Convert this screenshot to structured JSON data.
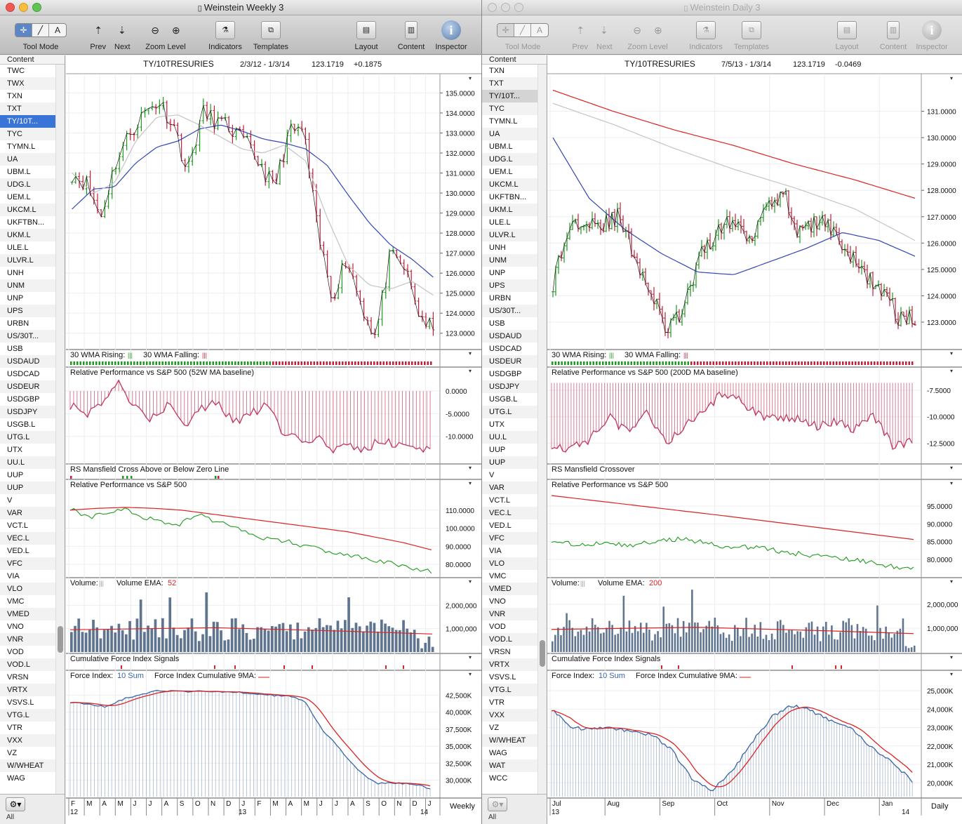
{
  "colors": {
    "up": "#1e9a1e",
    "down": "#c21e3a",
    "ma30": "#3246b4",
    "ma10": "#c4c4c4",
    "red": "#dd2222",
    "hist": "#c0365c",
    "vol": "#5f748f",
    "fi": "#7d94b8"
  },
  "left_window": {
    "title": "Weinstein Weekly 3",
    "toolbar": {
      "tool_mode": "Tool Mode",
      "prev": "Prev",
      "next": "Next",
      "zoom_level": "Zoom Level",
      "indicators": "Indicators",
      "templates": "Templates",
      "layout": "Layout",
      "content": "Content",
      "inspector": "Inspector"
    },
    "sidebar": {
      "header": "Content",
      "items": [
        "TWC",
        "TWX",
        "TXN",
        "TXT",
        "TY/10T...",
        "TYC",
        "TYMN.L",
        "UA",
        "UBM.L",
        "UDG.L",
        "UEM.L",
        "UKCM.L",
        "UKFTBN...",
        "UKM.L",
        "ULE.L",
        "ULVR.L",
        "UNH",
        "UNM",
        "UNP",
        "UPS",
        "URBN",
        "US/30T...",
        "USB",
        "USDAUD",
        "USDCAD",
        "USDEUR",
        "USDGBP",
        "USDJPY",
        "USGB.L",
        "UTG.L",
        "UTX",
        "UU.L",
        "UUP",
        "UUP",
        "V",
        "VAR",
        "VCT.L",
        "VEC.L",
        "VED.L",
        "VFC",
        "VIA",
        "VLO",
        "VMC",
        "VMED",
        "VNO",
        "VNR",
        "VOD",
        "VOD.L",
        "VRSN",
        "VRTX",
        "VSVS.L",
        "VTG.L",
        "VTR",
        "VXX",
        "VZ",
        "W/WHEAT",
        "WAG"
      ],
      "selected": 4,
      "footer": "All",
      "gear_icon": "gear-icon"
    },
    "chart": {
      "header": {
        "symbol": "TY/10TRESURIES",
        "range": "2/3/12 - 1/3/14",
        "last": "123.1719",
        "change": "+0.1875"
      },
      "price_ticks": [
        "135.0000",
        "134.0000",
        "133.0000",
        "132.0000",
        "131.0000",
        "130.0000",
        "129.0000",
        "128.0000",
        "127.0000",
        "126.0000",
        "125.0000",
        "124.0000",
        "123.0000"
      ],
      "wma_label": "30 WMA Rising:",
      "wma_falling_label": "30 WMA Falling:",
      "rp_ma_title": "Relative Performance vs S&P 500 (52W MA baseline)",
      "rp_ma_ticks": [
        "0.0000",
        "-5.0000",
        "-10.0000"
      ],
      "rs_title": "RS Mansfield Cross Above or Below Zero Line",
      "rp_title": "Relative Performance vs S&P 500",
      "rp_ticks": [
        "110.0000",
        "100.0000",
        "90.0000",
        "80.0000"
      ],
      "vol_label": "Volume:",
      "vol_ema_label": "Volume EMA:",
      "vol_ema_value": "52",
      "vol_ticks": [
        "2,000,000",
        "1,000,000"
      ],
      "cfi_title": "Cumulative Force Index Signals",
      "fi_label": "Force Index:",
      "fi_sum": "10 Sum",
      "fi_cum_label": "Force Index Cumulative 9MA:",
      "fi_ticks": [
        "42,500K",
        "40,000K",
        "37,500K",
        "35,000K",
        "32,500K",
        "30,000K"
      ],
      "x_months": [
        "F",
        "M",
        "A",
        "M",
        "J",
        "J",
        "A",
        "S",
        "O",
        "N",
        "D",
        "J",
        "F",
        "M",
        "A",
        "M",
        "J",
        "J",
        "A",
        "S",
        "O",
        "N",
        "D",
        "J"
      ],
      "x_years": [
        "12",
        "13",
        "14"
      ],
      "period": "Weekly"
    }
  },
  "right_window": {
    "title": "Weinstein Daily 3",
    "toolbar": {
      "tool_mode": "Tool Mode",
      "prev": "Prev",
      "next": "Next",
      "zoom_level": "Zoom Level",
      "indicators": "Indicators",
      "templates": "Templates",
      "layout": "Layout",
      "content": "Content",
      "inspector": "Inspector"
    },
    "sidebar": {
      "header": "Content",
      "items": [
        "TXN",
        "TXT",
        "TY/10T...",
        "TYC",
        "TYMN.L",
        "UA",
        "UBM.L",
        "UDG.L",
        "UEM.L",
        "UKCM.L",
        "UKFTBN...",
        "UKM.L",
        "ULE.L",
        "ULVR.L",
        "UNH",
        "UNM",
        "UNP",
        "UPS",
        "URBN",
        "US/30T...",
        "USB",
        "USDAUD",
        "USDCAD",
        "USDEUR",
        "USDGBP",
        "USDJPY",
        "USGB.L",
        "UTG.L",
        "UTX",
        "UU.L",
        "UUP",
        "UUP",
        "V",
        "VAR",
        "VCT.L",
        "VEC.L",
        "VED.L",
        "VFC",
        "VIA",
        "VLO",
        "VMC",
        "VMED",
        "VNO",
        "VNR",
        "VOD",
        "VOD.L",
        "VRSN",
        "VRTX",
        "VSVS.L",
        "VTG.L",
        "VTR",
        "VXX",
        "VZ",
        "W/WHEAT",
        "WAG",
        "WAT",
        "WCC"
      ],
      "selected": 2,
      "footer": "All",
      "gear_icon": "gear-icon"
    },
    "chart": {
      "header": {
        "symbol": "TY/10TRESURIES",
        "range": "7/5/13 - 1/3/14",
        "last": "123.1719",
        "change": "-0.0469"
      },
      "price_ticks": [
        "131.0000",
        "130.0000",
        "129.0000",
        "128.0000",
        "127.0000",
        "126.0000",
        "125.0000",
        "124.0000",
        "123.0000"
      ],
      "wma_label": "30 WMA Rising:",
      "wma_falling_label": "30 WMA Falling:",
      "rp_ma_title": "Relative Performance vs S&P 500 (200D MA baseline)",
      "rp_ma_ticks": [
        "-7.5000",
        "-10.0000",
        "-12.5000"
      ],
      "rs_title": "RS Mansfield Crossover",
      "rp_title": "Relative Performance vs S&P 500",
      "rp_ticks": [
        "95.0000",
        "90.0000",
        "85.0000",
        "80.0000"
      ],
      "vol_label": "Volume:",
      "vol_ema_label": "Volume EMA:",
      "vol_ema_value": "200",
      "vol_ticks": [
        "2,000,000",
        "1,000,000"
      ],
      "cfi_title": "Cumulative Force Index Signals",
      "fi_label": "Force Index:",
      "fi_sum": "10 Sum",
      "fi_cum_label": "Force Index Cumulative 9MA:",
      "fi_ticks": [
        "25,000K",
        "24,000K",
        "23,000K",
        "22,000K",
        "21,000K",
        "20,000K"
      ],
      "x_months": [
        "Jul",
        "Aug",
        "Sep",
        "Oct",
        "Nov",
        "Dec",
        "Jan"
      ],
      "x_years": [
        "13",
        "14"
      ],
      "period": "Daily"
    }
  }
}
